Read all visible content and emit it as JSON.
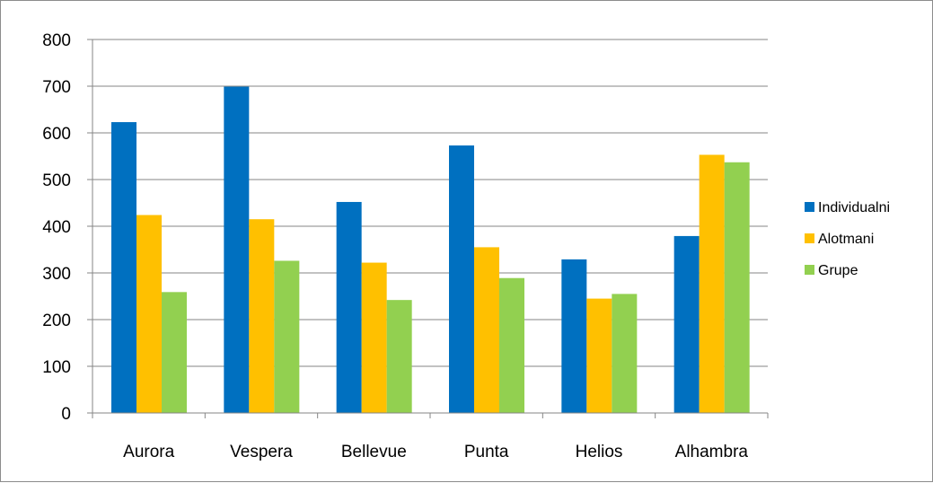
{
  "chart_data": {
    "type": "bar",
    "title": "",
    "xlabel": "",
    "ylabel": "",
    "categories": [
      "Aurora",
      "Vespera",
      "Bellevue",
      "Punta",
      "Helios",
      "Alhambra"
    ],
    "series": [
      {
        "name": "Individualni",
        "color": "#0070c0",
        "values": [
          623,
          699,
          452,
          573,
          329,
          379
        ]
      },
      {
        "name": "Alotmani",
        "color": "#ffc000",
        "values": [
          424,
          415,
          322,
          355,
          245,
          553
        ]
      },
      {
        "name": "Grupe",
        "color": "#92d050",
        "values": [
          259,
          326,
          242,
          289,
          255,
          537
        ]
      }
    ],
    "ylim": [
      0,
      800
    ],
    "yticks": [
      0,
      100,
      200,
      300,
      400,
      500,
      600,
      700,
      800
    ],
    "grid": true,
    "legend": "right"
  }
}
